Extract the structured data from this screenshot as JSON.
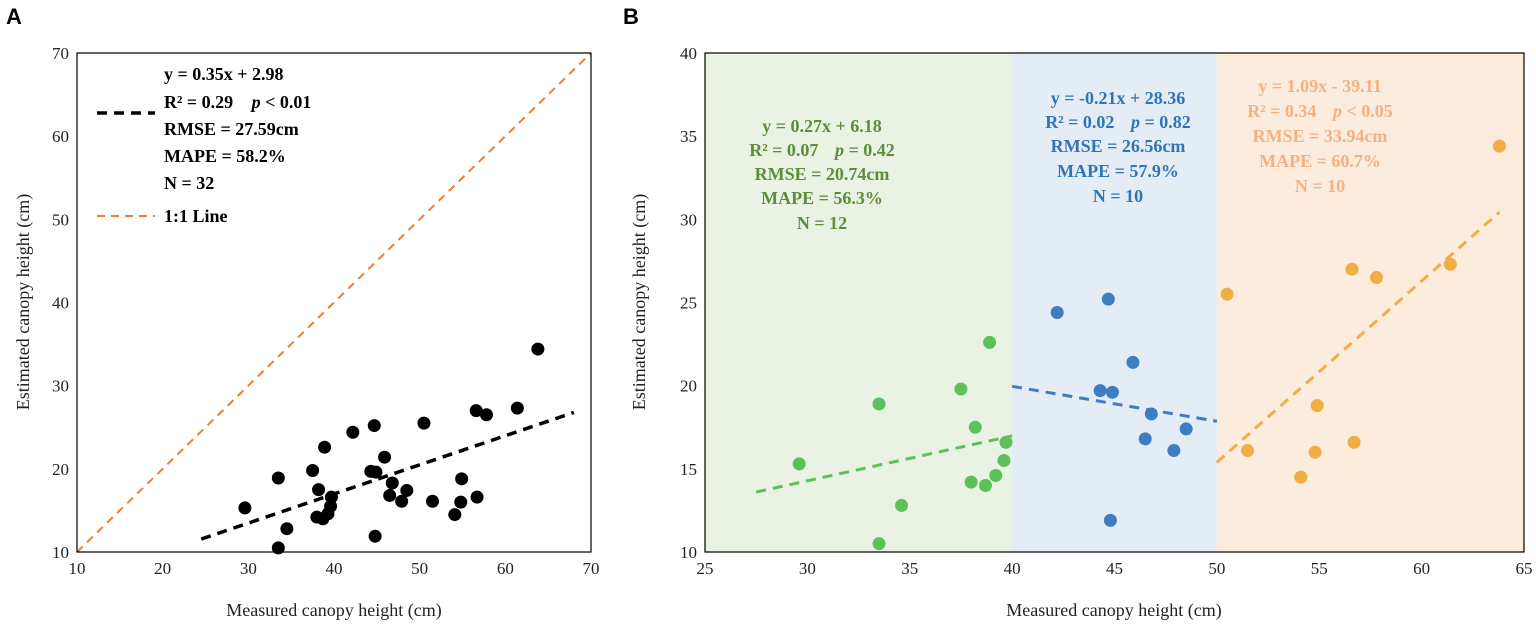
{
  "chart_data": [
    {
      "panel_label": "A",
      "type": "scatter",
      "xlabel": "Measured canopy height (cm)",
      "ylabel": "Estimated canopy height (cm)",
      "xlim": [
        10,
        70
      ],
      "ylim": [
        10,
        70
      ],
      "xticks": [
        10,
        20,
        30,
        40,
        50,
        60,
        70
      ],
      "yticks": [
        10,
        20,
        30,
        40,
        50,
        60,
        70
      ],
      "grid": false,
      "legend_position": "top-left",
      "points": [
        [
          29.6,
          15.3
        ],
        [
          33.5,
          18.9
        ],
        [
          33.5,
          10.5
        ],
        [
          34.5,
          12.8
        ],
        [
          37.5,
          19.8
        ],
        [
          38.0,
          14.2
        ],
        [
          38.2,
          17.5
        ],
        [
          38.7,
          14.0
        ],
        [
          38.9,
          22.6
        ],
        [
          39.3,
          14.6
        ],
        [
          39.6,
          15.5
        ],
        [
          39.7,
          16.6
        ],
        [
          42.2,
          24.4
        ],
        [
          44.3,
          19.7
        ],
        [
          44.7,
          25.2
        ],
        [
          44.9,
          19.6
        ],
        [
          45.9,
          21.4
        ],
        [
          46.5,
          16.8
        ],
        [
          46.8,
          18.3
        ],
        [
          47.9,
          16.1
        ],
        [
          48.5,
          17.4
        ],
        [
          44.8,
          11.9
        ],
        [
          50.5,
          25.5
        ],
        [
          51.5,
          16.1
        ],
        [
          54.1,
          14.5
        ],
        [
          54.8,
          16.0
        ],
        [
          54.9,
          18.8
        ],
        [
          56.6,
          27.0
        ],
        [
          56.7,
          16.6
        ],
        [
          57.8,
          26.5
        ],
        [
          61.4,
          27.3
        ],
        [
          63.8,
          34.4
        ]
      ],
      "regression": {
        "slope": 0.35,
        "intercept": 2.98,
        "x_range": [
          24.5,
          68
        ]
      },
      "one_to_one": {
        "x_range": [
          10,
          70
        ]
      },
      "legend": {
        "fit_lines": [
          "y = 0.35x + 2.98",
          "R² = 0.29",
          "RMSE = 27.59cm",
          "MAPE = 58.2%",
          "N = 32"
        ],
        "p_label": "p",
        "p_value": " < 0.01",
        "line_label": "1:1 Line"
      },
      "colors": {
        "points": "#000000",
        "fit": "#000000",
        "one_to_one": "#ED7D31"
      }
    },
    {
      "panel_label": "B",
      "type": "scatter",
      "xlabel": "Measured canopy height (cm)",
      "ylabel": "Estimated canopy height (cm)",
      "xlim": [
        25,
        65
      ],
      "ylim": [
        10,
        40
      ],
      "xticks": [
        25,
        30,
        35,
        40,
        45,
        50,
        55,
        60,
        65
      ],
      "yticks": [
        10,
        15,
        20,
        25,
        30,
        35,
        40
      ],
      "grid": false,
      "groups": [
        {
          "name": "low",
          "x_band": [
            25,
            40
          ],
          "band_color": "#E9F2E3",
          "color": "#5CC15A",
          "text_color": "#5B8E3A",
          "points": [
            [
              29.6,
              15.3
            ],
            [
              33.5,
              18.9
            ],
            [
              33.5,
              10.5
            ],
            [
              34.6,
              12.8
            ],
            [
              37.5,
              19.8
            ],
            [
              38.0,
              14.2
            ],
            [
              38.2,
              17.5
            ],
            [
              38.7,
              14.0
            ],
            [
              38.9,
              22.6
            ],
            [
              39.2,
              14.6
            ],
            [
              39.6,
              15.5
            ],
            [
              39.7,
              16.6
            ]
          ],
          "regression": {
            "slope": 0.27,
            "intercept": 6.18,
            "x_range": [
              27.5,
              40
            ]
          },
          "stats": [
            "y = 0.27x + 6.18",
            "R² = 0.07",
            "RMSE =  20.74cm",
            "MAPE = 56.3%",
            "N = 12"
          ],
          "p_label": "p",
          "p_value": " = 0.42"
        },
        {
          "name": "mid",
          "x_band": [
            40,
            50
          ],
          "band_color": "#E4ECF5",
          "color": "#3D7EC3",
          "text_color": "#2F75B5",
          "points": [
            [
              42.2,
              24.4
            ],
            [
              44.3,
              19.7
            ],
            [
              44.7,
              25.2
            ],
            [
              44.9,
              19.6
            ],
            [
              45.9,
              21.4
            ],
            [
              46.5,
              16.8
            ],
            [
              46.8,
              18.3
            ],
            [
              47.9,
              16.1
            ],
            [
              48.5,
              17.4
            ],
            [
              44.8,
              11.9
            ]
          ],
          "regression": {
            "slope": -0.21,
            "intercept": 28.36,
            "x_range": [
              40,
              50
            ]
          },
          "stats": [
            "y = -0.21x + 28.36",
            "R² = 0.02",
            "RMSE = 26.56cm",
            "MAPE = 57.9%",
            "N = 10"
          ],
          "p_label": "p",
          "p_value": " = 0.82"
        },
        {
          "name": "high",
          "x_band": [
            50,
            65
          ],
          "band_color": "#FBECDD",
          "color": "#F0AE45",
          "text_color": "#F4B183",
          "points": [
            [
              50.5,
              25.5
            ],
            [
              51.5,
              16.1
            ],
            [
              54.1,
              14.5
            ],
            [
              54.8,
              16.0
            ],
            [
              54.9,
              18.8
            ],
            [
              56.6,
              27.0
            ],
            [
              56.7,
              16.6
            ],
            [
              57.8,
              26.5
            ],
            [
              61.4,
              27.3
            ],
            [
              63.8,
              34.4
            ]
          ],
          "regression": {
            "slope": 1.09,
            "intercept": -39.11,
            "x_range": [
              50,
              63.8
            ]
          },
          "stats": [
            "y = 1.09x - 39.11",
            "R² = 0.34",
            "RMSE = 33.94cm",
            "MAPE = 60.7%",
            "N = 10"
          ],
          "p_label": "p",
          "p_value": " < 0.05"
        }
      ]
    }
  ]
}
